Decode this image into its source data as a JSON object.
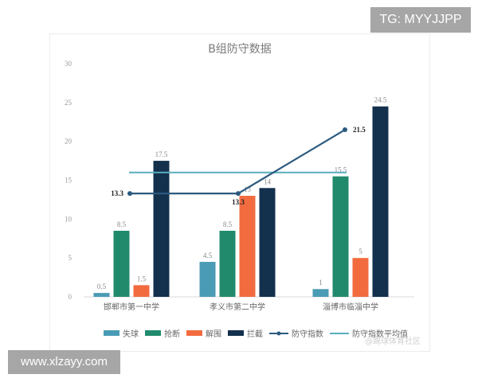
{
  "watermarks": {
    "top_right": "TG: MYYJJPP",
    "bottom_left": "www.xlzayy.com",
    "weibo": "@踢球体育社区"
  },
  "chart_data": {
    "type": "bar",
    "title": "B组防守数据",
    "xlabel": "",
    "ylabel": "",
    "ylim": [
      0,
      30
    ],
    "yticks": [
      0,
      5,
      10,
      15,
      20,
      25,
      30
    ],
    "grid": false,
    "legend_position": "bottom",
    "categories": [
      "邯郸市第一中学",
      "孝义市第二中学",
      "淄博市临淄中学"
    ],
    "series": [
      {
        "name": "失球",
        "type": "bar",
        "color": "#4a9bb5",
        "values": [
          0.5,
          4.5,
          1
        ]
      },
      {
        "name": "抢断",
        "type": "bar",
        "color": "#218a6c",
        "values": [
          8.5,
          8.5,
          15.5
        ]
      },
      {
        "name": "解围",
        "type": "bar",
        "color": "#f26b3f",
        "values": [
          1.5,
          13,
          5
        ]
      },
      {
        "name": "拦截",
        "type": "bar",
        "color": "#13304d",
        "values": [
          17.5,
          14,
          24.5
        ]
      },
      {
        "name": "防守指数",
        "type": "line",
        "color": "#2c5a7e",
        "values": [
          13.3,
          13.3,
          21.5
        ]
      },
      {
        "name": "防守指数平均值",
        "type": "line",
        "color": "#58aebd",
        "values": [
          16,
          16,
          16
        ]
      }
    ]
  }
}
